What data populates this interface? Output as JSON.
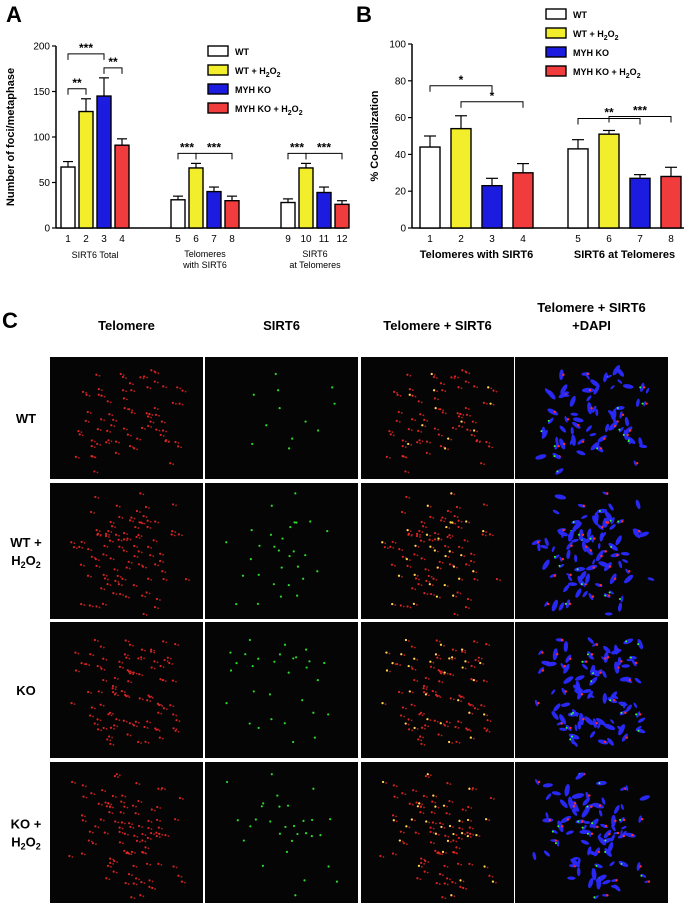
{
  "panels": {
    "a": "A",
    "b": "B",
    "c": "C"
  },
  "chart_data": [
    {
      "type": "bar",
      "panel": "A",
      "ylabel": "Number of foci/metaphase",
      "ylim": [
        0,
        200
      ],
      "yticks": [
        0,
        50,
        100,
        150,
        200
      ],
      "bar_labels": [
        "1",
        "2",
        "3",
        "4",
        "5",
        "6",
        "7",
        "8",
        "9",
        "10",
        "11",
        "12"
      ],
      "values": [
        67,
        128,
        145,
        91,
        31,
        66,
        40,
        30,
        28,
        66,
        39,
        26
      ],
      "errors": [
        6,
        14,
        20,
        7,
        4,
        5,
        5,
        5,
        4,
        5,
        6,
        4
      ],
      "groups": [
        {
          "label": "SIRT6 Total",
          "bars": [
            0,
            1,
            2,
            3
          ]
        },
        {
          "label_lines": [
            "Telomeres",
            "with SIRT6"
          ],
          "bars": [
            4,
            5,
            6,
            7
          ]
        },
        {
          "label_lines": [
            "SIRT6",
            "at Telomeres"
          ],
          "bars": [
            8,
            9,
            10,
            11
          ]
        }
      ],
      "significance": [
        {
          "from": 0,
          "to": 1,
          "label": "**"
        },
        {
          "from": 0,
          "to": 2,
          "label": "***"
        },
        {
          "from": 2,
          "to": 3,
          "label": "**"
        },
        {
          "from": 4,
          "to": 5,
          "label": "***"
        },
        {
          "from": 5,
          "to": 7,
          "label": "***"
        },
        {
          "from": 8,
          "to": 9,
          "label": "***"
        },
        {
          "from": 9,
          "to": 11,
          "label": "***"
        }
      ],
      "legend": [
        {
          "label": "WT",
          "color": "#ffffff"
        },
        {
          "label_main": "WT + H",
          "label_sub": "2",
          "label_main2": "O",
          "label_sub2": "2",
          "color": "#f2ee2b"
        },
        {
          "label": "MYH KO",
          "color": "#1c1ce0"
        },
        {
          "label_main": "MYH KO + H",
          "label_sub": "2",
          "label_main2": "O",
          "label_sub2": "2",
          "color": "#f03c3c"
        }
      ]
    },
    {
      "type": "bar",
      "panel": "B",
      "ylabel": "% Co-localization",
      "ylim": [
        0,
        100
      ],
      "yticks": [
        0,
        20,
        40,
        60,
        80,
        100
      ],
      "bar_labels": [
        "1",
        "2",
        "3",
        "4",
        "5",
        "6",
        "7",
        "8"
      ],
      "values": [
        44,
        54,
        23,
        30,
        43,
        51,
        27,
        28
      ],
      "errors": [
        6,
        7,
        4,
        5,
        5,
        2,
        2,
        5
      ],
      "groups": [
        {
          "label": "Telomeres with SIRT6",
          "bars": [
            0,
            1,
            2,
            3
          ]
        },
        {
          "label": "SIRT6 at Telomeres",
          "bars": [
            4,
            5,
            6,
            7
          ]
        }
      ],
      "significance": [
        {
          "from": 0,
          "to": 2,
          "label": "*"
        },
        {
          "from": 1,
          "to": 3,
          "label": "*"
        },
        {
          "from": 4,
          "to": 6,
          "label": "**"
        },
        {
          "from": 5,
          "to": 7,
          "label": "***"
        }
      ],
      "legend": [
        {
          "label": "WT",
          "color": "#ffffff"
        },
        {
          "label_main": "WT + H",
          "label_sub": "2",
          "label_main2": "O",
          "label_sub2": "2",
          "color": "#f2ee2b"
        },
        {
          "label": "MYH KO",
          "color": "#1c1ce0"
        },
        {
          "label_main": "MYH KO + H",
          "label_sub": "2",
          "label_main2": "O",
          "label_sub2": "2",
          "color": "#f03c3c"
        }
      ]
    }
  ],
  "micrograph": {
    "columns": [
      "Telomere",
      "SIRT6",
      "Telomere + SIRT6"
    ],
    "column_last_lines": [
      "Telomere + SIRT6",
      "+DAPI"
    ],
    "rows": [
      {
        "label_lines": [
          "WT"
        ],
        "seed": 11
      },
      {
        "label_lines": [
          "WT +",
          "H2O2"
        ],
        "sub": true,
        "seed": 23
      },
      {
        "label_lines": [
          "KO"
        ],
        "seed": 37
      },
      {
        "label_lines": [
          "KO +",
          "H2O2"
        ],
        "sub": true,
        "seed": 53
      }
    ],
    "colors": {
      "telomere": "#ff2a2a",
      "sirt6": "#33ff33",
      "dapi": "#2a2aff",
      "merge": "#ffee55"
    }
  }
}
